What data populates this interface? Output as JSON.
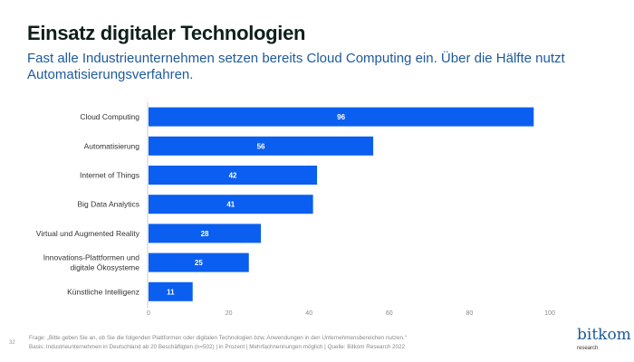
{
  "header": {
    "title": "Einsatz digitaler Technologien",
    "subtitle": "Fast alle Industrieunternehmen setzen bereits Cloud Computing ein. Über die Hälfte nutzt Automatisierungsverfahren."
  },
  "chart_data": {
    "type": "bar",
    "orientation": "horizontal",
    "categories": [
      "Cloud Computing",
      "Automatisierung",
      "Internet of Things",
      "Big Data Analytics",
      "Virtual und Augmented Reality",
      "Innovations-Plattformen und digitale Ökosysteme",
      "Künstliche Intelligenz"
    ],
    "values": [
      96,
      56,
      42,
      41,
      28,
      25,
      11
    ],
    "xlim": [
      0,
      100
    ],
    "xticks": [
      0,
      20,
      40,
      60,
      80,
      100
    ],
    "grid": false,
    "bar_color": "#0a5ff0"
  },
  "footer": {
    "page": "32",
    "question": "Frage: „Bitte geben Sie an, ob Sie die folgenden Plattformen oder digitalen Technologien bzw. Anwendungen in den Unternehmensbereichen nutzen.“",
    "basis": "Basis: Industrieunternehmen in Deutschland ab 20 Beschäftigten (n=502) | in Prozent | Mehrfachnennungen möglich | Quelle: Bitkom Research 2022",
    "logo_main": "bitkom",
    "logo_sub": "research"
  }
}
